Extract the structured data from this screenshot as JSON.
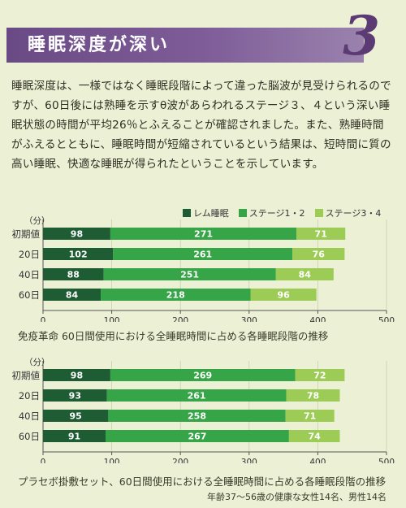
{
  "header": {
    "title": "睡眠深度が深い",
    "number": "3"
  },
  "body_text": "睡眠深度は、一様ではなく睡眠段階によって違った脳波が見受けられるのですが、60日後には熟睡を示すθ波があらわれるステージ３、４という深い睡眠状態の時間が平均26％とふえることが確認されました。また、熟睡時間がふえるとともに、睡眠時間が短縮されているという結果は、短時間に質の高い睡眠、快適な睡眠が得られたということを示しています。",
  "legend": [
    {
      "name": "レム睡眠",
      "color": "#1e5c33"
    },
    {
      "name": "ステージ1・2",
      "color": "#35a548"
    },
    {
      "name": "ステージ3・4",
      "color": "#9ccc55"
    }
  ],
  "note": "年齢37〜56歳の健康な女性14名、男性14名",
  "chart_data": [
    {
      "type": "bar",
      "orientation": "horizontal",
      "stacked": true,
      "unit_label": "（分）",
      "categories": [
        "初期値",
        "20日",
        "40日",
        "60日"
      ],
      "series": [
        {
          "name": "レム睡眠",
          "values": [
            98,
            102,
            88,
            84
          ]
        },
        {
          "name": "ステージ1・2",
          "values": [
            271,
            261,
            251,
            218
          ]
        },
        {
          "name": "ステージ3・4",
          "values": [
            71,
            76,
            84,
            96
          ]
        }
      ],
      "xlim": [
        0,
        500
      ],
      "xticks": [
        0,
        100,
        200,
        300,
        400,
        500
      ],
      "caption": "免疫革命 60日間使用における全睡眠時間に占める各睡眠段階の推移"
    },
    {
      "type": "bar",
      "orientation": "horizontal",
      "stacked": true,
      "unit_label": "（分）",
      "categories": [
        "初期値",
        "20日",
        "40日",
        "60日"
      ],
      "series": [
        {
          "name": "レム睡眠",
          "values": [
            98,
            93,
            95,
            91
          ]
        },
        {
          "name": "ステージ1・2",
          "values": [
            269,
            261,
            258,
            267
          ]
        },
        {
          "name": "ステージ3・4",
          "values": [
            72,
            78,
            71,
            74
          ]
        }
      ],
      "xlim": [
        0,
        500
      ],
      "xticks": [
        0,
        100,
        200,
        300,
        400,
        500
      ],
      "caption": "プラセボ掛敷セット、60日間使用における全睡眠時間に占める各睡眠段階の推移"
    }
  ]
}
